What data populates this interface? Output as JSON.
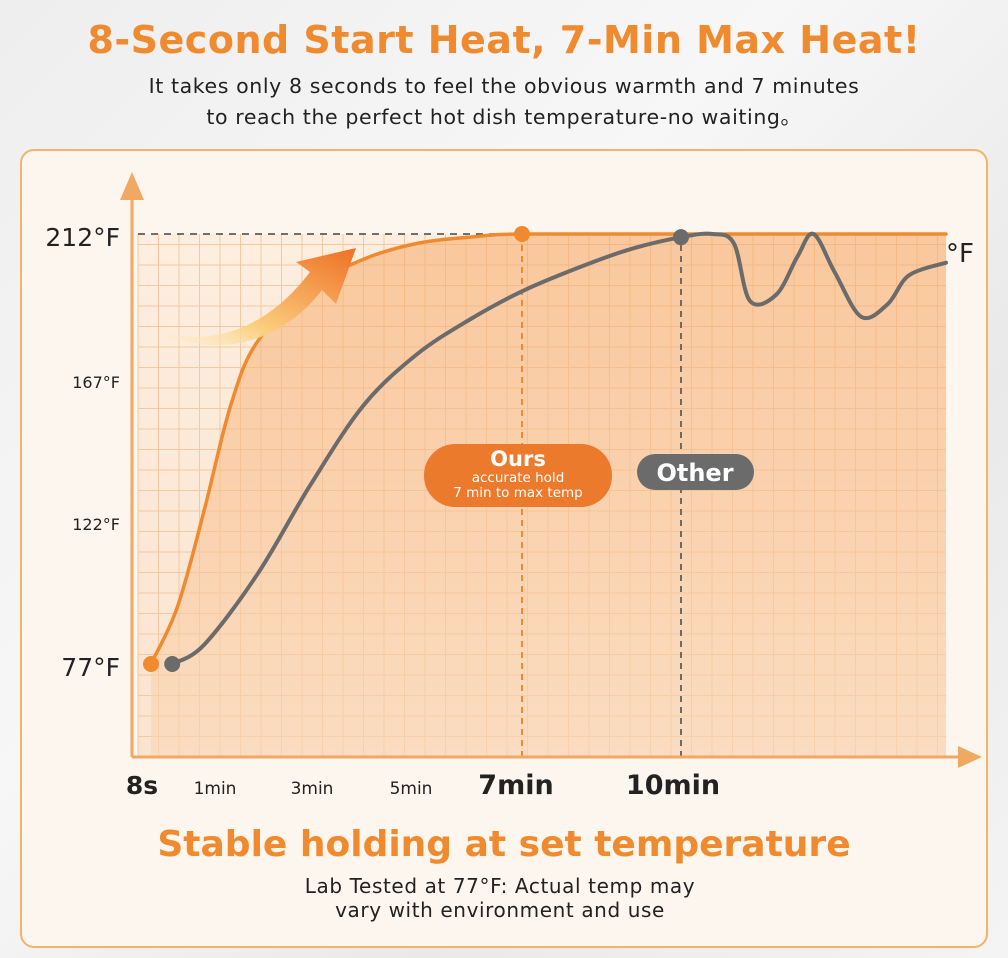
{
  "header": {
    "title": "8-Second Start Heat, 7-Min Max Heat!",
    "subtitle_line1": "It takes only 8 seconds to feel the obvious warmth and 7 minutes",
    "subtitle_line2": "to reach the perfect hot dish temperature-no waiting。"
  },
  "footer": {
    "title": "Stable holding at set temperature",
    "note_line1": "Lab Tested at 77°F: Actual temp may",
    "note_line2": "vary with environment and use"
  },
  "colors": {
    "orange": "#ef8a2e",
    "gray": "#6b6b6b",
    "grid": "#f4c9a0"
  },
  "chart_data": {
    "type": "line",
    "y_unit_label": "°F",
    "y_ticks": [
      {
        "value": 212,
        "label": "212°F"
      },
      {
        "value": 167,
        "label": "167°F"
      },
      {
        "value": 122,
        "label": "122°F"
      },
      {
        "value": 77,
        "label": "77°F"
      }
    ],
    "x_ticks": [
      {
        "value": 0.133,
        "label": "8s"
      },
      {
        "value": 1,
        "label": "1min"
      },
      {
        "value": 3,
        "label": "3min"
      },
      {
        "value": 5,
        "label": "5min"
      },
      {
        "value": 7,
        "label": "7min"
      },
      {
        "value": 10,
        "label": "10min"
      }
    ],
    "xlim": [
      0,
      15
    ],
    "ylim": [
      55,
      225
    ],
    "series": [
      {
        "name": "Ours",
        "color": "#ef8a2e",
        "points": [
          [
            0,
            77
          ],
          [
            0.5,
            95
          ],
          [
            1,
            125
          ],
          [
            1.5,
            158
          ],
          [
            2,
            178
          ],
          [
            3,
            195
          ],
          [
            4,
            204
          ],
          [
            5,
            209
          ],
          [
            6,
            211
          ],
          [
            7,
            212
          ],
          [
            10,
            212
          ],
          [
            15,
            212
          ]
        ],
        "endpoint_markers": [
          [
            0,
            77
          ],
          [
            7,
            212
          ]
        ]
      },
      {
        "name": "Other",
        "color": "#6b6b6b",
        "points": [
          [
            0.4,
            77
          ],
          [
            1,
            83
          ],
          [
            2,
            105
          ],
          [
            3,
            133
          ],
          [
            4,
            158
          ],
          [
            5,
            174
          ],
          [
            6,
            185
          ],
          [
            7,
            194
          ],
          [
            8,
            201
          ],
          [
            9,
            207
          ],
          [
            10,
            211
          ],
          [
            10.6,
            212
          ],
          [
            11,
            209
          ],
          [
            11.3,
            191
          ],
          [
            11.8,
            193
          ],
          [
            12.2,
            205
          ],
          [
            12.5,
            212
          ],
          [
            12.9,
            200
          ],
          [
            13.4,
            186
          ],
          [
            13.9,
            190
          ],
          [
            14.3,
            199
          ],
          [
            15,
            203
          ]
        ],
        "endpoint_markers": [
          [
            0.4,
            77
          ],
          [
            10,
            211
          ]
        ]
      }
    ],
    "reference_lines": [
      {
        "axis": "y",
        "value": 212
      },
      {
        "axis": "x",
        "value": 7
      },
      {
        "axis": "x",
        "value": 10
      }
    ],
    "annotations": [
      {
        "series": "Ours",
        "lines": [
          "Ours",
          "accurate hold",
          "7 min to max temp"
        ]
      },
      {
        "series": "Other",
        "lines": [
          "Other"
        ]
      }
    ]
  }
}
